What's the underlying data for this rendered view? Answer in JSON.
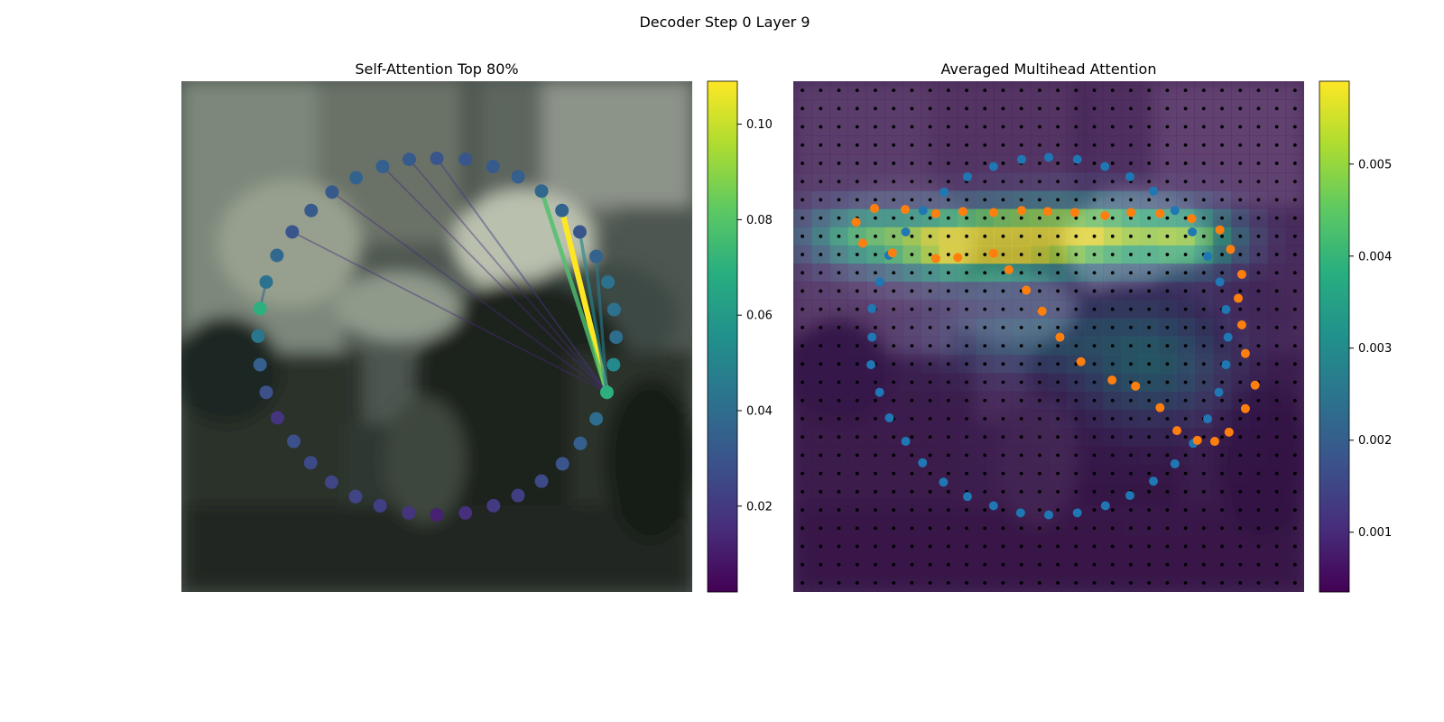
{
  "figure": {
    "title": "Decoder Step 0 Layer 9"
  },
  "chart_data": [
    {
      "type": "scatter",
      "title": "Self-Attention Top 80%",
      "description_kind": "attention-points-over-image",
      "colormap": "viridis",
      "colorbar": {
        "vmin": 0.002,
        "vmax": 0.109,
        "ticks": [
          0.02,
          0.04,
          0.06,
          0.08,
          0.1
        ],
        "tick_labels": [
          "0.02",
          "0.04",
          "0.06",
          "0.08",
          "0.10"
        ]
      },
      "points": [
        {
          "x": 0.5,
          "y": 0.151,
          "value": 0.03
        },
        {
          "x": 0.556,
          "y": 0.153,
          "value": 0.03
        },
        {
          "x": 0.61,
          "y": 0.167,
          "value": 0.032
        },
        {
          "x": 0.659,
          "y": 0.187,
          "value": 0.034
        },
        {
          "x": 0.705,
          "y": 0.215,
          "value": 0.038
        },
        {
          "x": 0.745,
          "y": 0.253,
          "value": 0.036
        },
        {
          "x": 0.78,
          "y": 0.295,
          "value": 0.03
        },
        {
          "x": 0.812,
          "y": 0.343,
          "value": 0.036
        },
        {
          "x": 0.835,
          "y": 0.393,
          "value": 0.042
        },
        {
          "x": 0.847,
          "y": 0.447,
          "value": 0.042
        },
        {
          "x": 0.851,
          "y": 0.501,
          "value": 0.04
        },
        {
          "x": 0.846,
          "y": 0.555,
          "value": 0.052
        },
        {
          "x": 0.833,
          "y": 0.609,
          "value": 0.07
        },
        {
          "x": 0.812,
          "y": 0.661,
          "value": 0.04
        },
        {
          "x": 0.781,
          "y": 0.709,
          "value": 0.034
        },
        {
          "x": 0.746,
          "y": 0.749,
          "value": 0.03
        },
        {
          "x": 0.705,
          "y": 0.783,
          "value": 0.026
        },
        {
          "x": 0.659,
          "y": 0.811,
          "value": 0.022
        },
        {
          "x": 0.611,
          "y": 0.831,
          "value": 0.02
        },
        {
          "x": 0.556,
          "y": 0.845,
          "value": 0.016
        },
        {
          "x": 0.5,
          "y": 0.849,
          "value": 0.012
        },
        {
          "x": 0.445,
          "y": 0.845,
          "value": 0.018
        },
        {
          "x": 0.389,
          "y": 0.831,
          "value": 0.022
        },
        {
          "x": 0.341,
          "y": 0.813,
          "value": 0.024
        },
        {
          "x": 0.294,
          "y": 0.785,
          "value": 0.024
        },
        {
          "x": 0.253,
          "y": 0.747,
          "value": 0.026
        },
        {
          "x": 0.22,
          "y": 0.705,
          "value": 0.028
        },
        {
          "x": 0.188,
          "y": 0.659,
          "value": 0.018
        },
        {
          "x": 0.166,
          "y": 0.609,
          "value": 0.028
        },
        {
          "x": 0.154,
          "y": 0.555,
          "value": 0.034
        },
        {
          "x": 0.15,
          "y": 0.499,
          "value": 0.044
        },
        {
          "x": 0.154,
          "y": 0.445,
          "value": 0.07
        },
        {
          "x": 0.166,
          "y": 0.393,
          "value": 0.042
        },
        {
          "x": 0.187,
          "y": 0.341,
          "value": 0.038
        },
        {
          "x": 0.217,
          "y": 0.295,
          "value": 0.03
        },
        {
          "x": 0.254,
          "y": 0.253,
          "value": 0.032
        },
        {
          "x": 0.295,
          "y": 0.217,
          "value": 0.032
        },
        {
          "x": 0.342,
          "y": 0.189,
          "value": 0.036
        },
        {
          "x": 0.394,
          "y": 0.167,
          "value": 0.034
        },
        {
          "x": 0.446,
          "y": 0.153,
          "value": 0.032
        }
      ],
      "edges": [
        {
          "from": 12,
          "to": 5,
          "value": 0.109
        },
        {
          "from": 12,
          "to": 4,
          "value": 0.078
        },
        {
          "from": 12,
          "to": 6,
          "value": 0.052
        },
        {
          "from": 12,
          "to": 7,
          "value": 0.046
        },
        {
          "from": 12,
          "to": 0,
          "value": 0.02
        },
        {
          "from": 12,
          "to": 36,
          "value": 0.015
        },
        {
          "from": 12,
          "to": 38,
          "value": 0.015
        },
        {
          "from": 12,
          "to": 34,
          "value": 0.015
        },
        {
          "from": 12,
          "to": 39,
          "value": 0.015
        },
        {
          "from": 31,
          "to": 32,
          "value": 0.035
        }
      ]
    },
    {
      "type": "heatmap",
      "title": "Averaged Multihead Attention",
      "description_kind": "attention-heatmap-over-image",
      "colormap": "viridis",
      "grid": {
        "rows": 28,
        "cols": 28
      },
      "colorbar": {
        "vmin": 0.00035,
        "vmax": 0.0059,
        "ticks": [
          0.001,
          0.002,
          0.003,
          0.004,
          0.005
        ],
        "tick_labels": [
          "0.001",
          "0.002",
          "0.003",
          "0.004",
          "0.005"
        ]
      },
      "hotspots": [
        {
          "cx": 0.34,
          "cy": 0.32,
          "sx": 0.12,
          "sy": 0.045,
          "amp": 1.0
        },
        {
          "cx": 0.57,
          "cy": 0.3,
          "sx": 0.13,
          "sy": 0.045,
          "amp": 0.85
        },
        {
          "cx": 0.78,
          "cy": 0.31,
          "sx": 0.07,
          "sy": 0.04,
          "amp": 0.55
        },
        {
          "cx": 0.12,
          "cy": 0.3,
          "sx": 0.08,
          "sy": 0.04,
          "amp": 0.45
        },
        {
          "cx": 0.7,
          "cy": 0.55,
          "sx": 0.1,
          "sy": 0.08,
          "amp": 0.32
        },
        {
          "cx": 0.45,
          "cy": 0.5,
          "sx": 0.12,
          "sy": 0.05,
          "amp": 0.25
        }
      ],
      "series": [
        {
          "color": "#1f77b4",
          "points": [
            [
              0.447,
              0.153
            ],
            [
              0.5,
              0.149
            ],
            [
              0.556,
              0.153
            ],
            [
              0.61,
              0.167
            ],
            [
              0.659,
              0.187
            ],
            [
              0.705,
              0.215
            ],
            [
              0.747,
              0.253
            ],
            [
              0.781,
              0.295
            ],
            [
              0.811,
              0.343
            ],
            [
              0.835,
              0.393
            ],
            [
              0.847,
              0.447
            ],
            [
              0.851,
              0.501
            ],
            [
              0.847,
              0.555
            ],
            [
              0.833,
              0.609
            ],
            [
              0.811,
              0.661
            ],
            [
              0.783,
              0.709
            ],
            [
              0.747,
              0.749
            ],
            [
              0.705,
              0.783
            ],
            [
              0.659,
              0.811
            ],
            [
              0.611,
              0.831
            ],
            [
              0.556,
              0.845
            ],
            [
              0.5,
              0.849
            ],
            [
              0.445,
              0.845
            ],
            [
              0.392,
              0.831
            ],
            [
              0.341,
              0.813
            ],
            [
              0.294,
              0.785
            ],
            [
              0.253,
              0.747
            ],
            [
              0.22,
              0.705
            ],
            [
              0.188,
              0.659
            ],
            [
              0.169,
              0.609
            ],
            [
              0.152,
              0.555
            ],
            [
              0.154,
              0.501
            ],
            [
              0.154,
              0.445
            ],
            [
              0.169,
              0.393
            ],
            [
              0.187,
              0.341
            ],
            [
              0.22,
              0.295
            ],
            [
              0.254,
              0.253
            ],
            [
              0.295,
              0.217
            ],
            [
              0.341,
              0.187
            ],
            [
              0.392,
              0.167
            ]
          ]
        },
        {
          "color": "#ff7f0e",
          "points": [
            [
              0.123,
              0.276
            ],
            [
              0.159,
              0.249
            ],
            [
              0.219,
              0.251
            ],
            [
              0.279,
              0.259
            ],
            [
              0.332,
              0.255
            ],
            [
              0.392,
              0.257
            ],
            [
              0.447,
              0.253
            ],
            [
              0.498,
              0.255
            ],
            [
              0.551,
              0.257
            ],
            [
              0.61,
              0.263
            ],
            [
              0.661,
              0.257
            ],
            [
              0.718,
              0.259
            ],
            [
              0.78,
              0.269
            ],
            [
              0.835,
              0.291
            ],
            [
              0.856,
              0.329
            ],
            [
              0.878,
              0.378
            ],
            [
              0.871,
              0.425
            ],
            [
              0.878,
              0.477
            ],
            [
              0.885,
              0.533
            ],
            [
              0.904,
              0.595
            ],
            [
              0.885,
              0.641
            ],
            [
              0.853,
              0.687
            ],
            [
              0.825,
              0.705
            ],
            [
              0.791,
              0.703
            ],
            [
              0.751,
              0.684
            ],
            [
              0.718,
              0.639
            ],
            [
              0.67,
              0.597
            ],
            [
              0.624,
              0.585
            ],
            [
              0.563,
              0.549
            ],
            [
              0.522,
              0.501
            ],
            [
              0.487,
              0.45
            ],
            [
              0.456,
              0.409
            ],
            [
              0.422,
              0.369
            ],
            [
              0.392,
              0.337
            ],
            [
              0.322,
              0.345
            ],
            [
              0.279,
              0.347
            ],
            [
              0.194,
              0.336
            ],
            [
              0.136,
              0.317
            ]
          ]
        }
      ]
    }
  ]
}
